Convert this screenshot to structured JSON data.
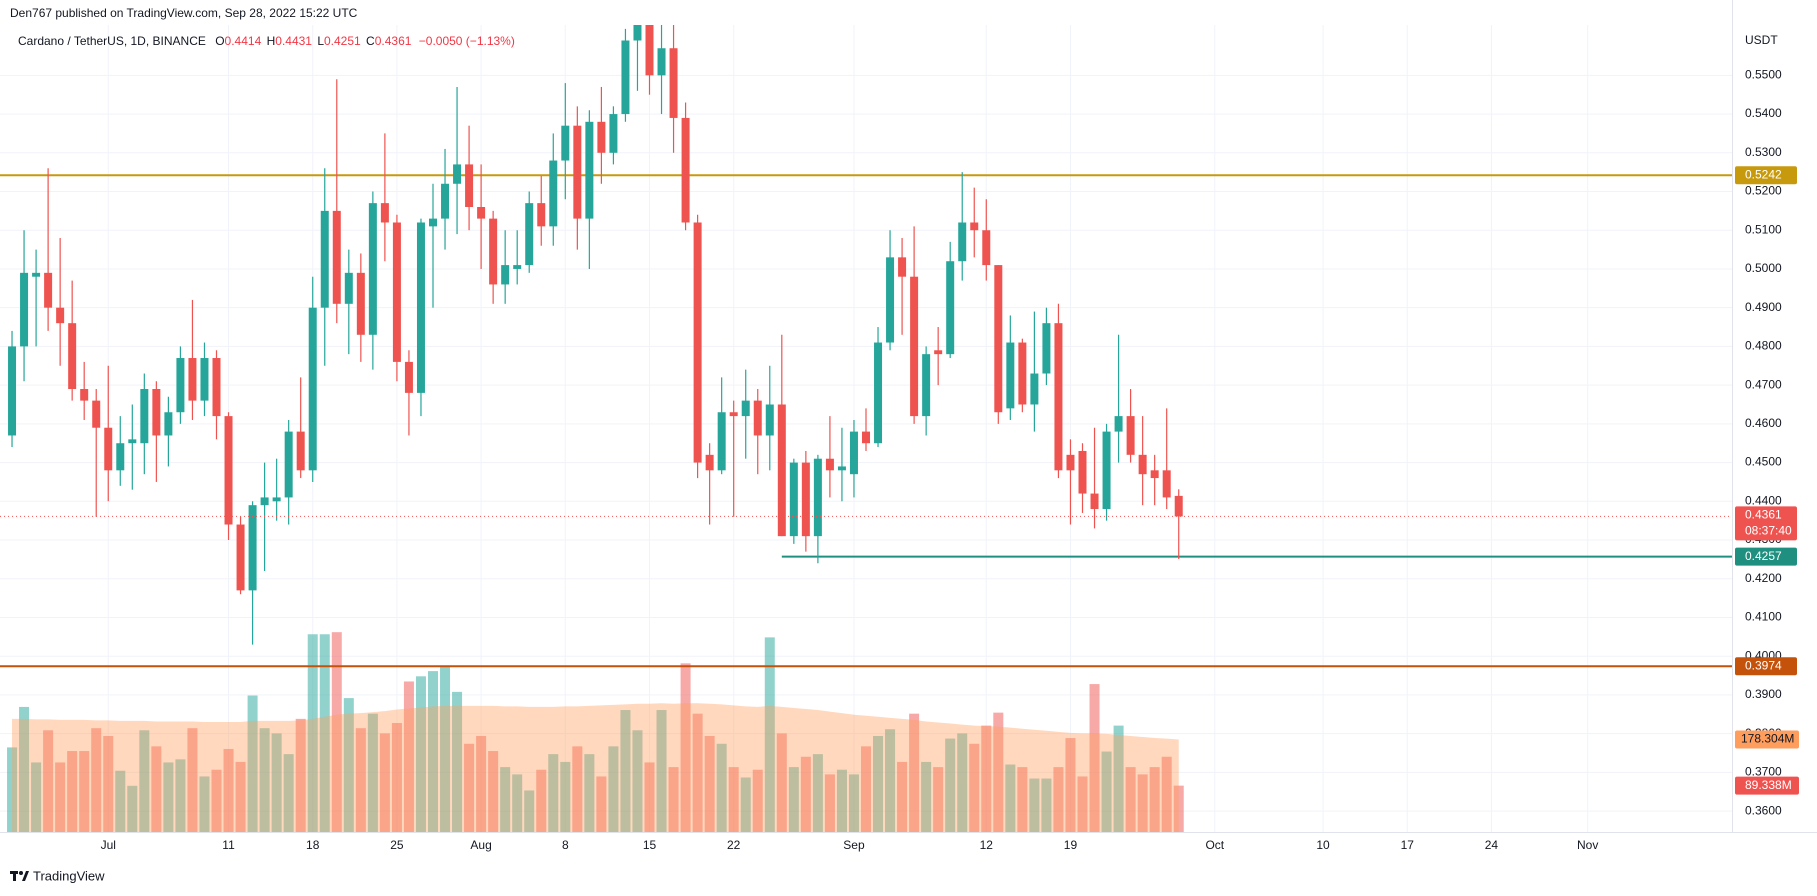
{
  "header": {
    "publisher": "Den767 published on TradingView.com, Sep 28, 2022 15:22 UTC",
    "symbol": "Cardano / TetherUS, 1D, BINANCE",
    "ohlc_labels": [
      "O",
      "H",
      "L",
      "C"
    ],
    "change": "−0.0050 (−1.13%)"
  },
  "footer": {
    "brand": "TradingView"
  },
  "chart_data": {
    "type": "candlestick",
    "y_unit": "USDT",
    "up_color": "#26a69a",
    "down_color": "#ef5350",
    "x": [
      "2022-06-23",
      "2022-06-24",
      "2022-06-25",
      "2022-06-26",
      "2022-06-27",
      "2022-06-28",
      "2022-06-29",
      "2022-06-30",
      "2022-07-01",
      "2022-07-02",
      "2022-07-03",
      "2022-07-04",
      "2022-07-05",
      "2022-07-06",
      "2022-07-07",
      "2022-07-08",
      "2022-07-09",
      "2022-07-10",
      "2022-07-11",
      "2022-07-12",
      "2022-07-13",
      "2022-07-14",
      "2022-07-15",
      "2022-07-16",
      "2022-07-17",
      "2022-07-18",
      "2022-07-19",
      "2022-07-20",
      "2022-07-21",
      "2022-07-22",
      "2022-07-23",
      "2022-07-24",
      "2022-07-25",
      "2022-07-26",
      "2022-07-27",
      "2022-07-28",
      "2022-07-29",
      "2022-07-30",
      "2022-07-31",
      "2022-08-01",
      "2022-08-02",
      "2022-08-03",
      "2022-08-04",
      "2022-08-05",
      "2022-08-06",
      "2022-08-07",
      "2022-08-08",
      "2022-08-09",
      "2022-08-10",
      "2022-08-11",
      "2022-08-12",
      "2022-08-13",
      "2022-08-14",
      "2022-08-15",
      "2022-08-16",
      "2022-08-17",
      "2022-08-18",
      "2022-08-19",
      "2022-08-20",
      "2022-08-21",
      "2022-08-22",
      "2022-08-23",
      "2022-08-24",
      "2022-08-25",
      "2022-08-26",
      "2022-08-27",
      "2022-08-28",
      "2022-08-29",
      "2022-08-30",
      "2022-08-31",
      "2022-09-01",
      "2022-09-02",
      "2022-09-03",
      "2022-09-04",
      "2022-09-05",
      "2022-09-06",
      "2022-09-07",
      "2022-09-08",
      "2022-09-09",
      "2022-09-10",
      "2022-09-11",
      "2022-09-12",
      "2022-09-13",
      "2022-09-14",
      "2022-09-15",
      "2022-09-16",
      "2022-09-17",
      "2022-09-18",
      "2022-09-19",
      "2022-09-20",
      "2022-09-21",
      "2022-09-22",
      "2022-09-23",
      "2022-09-24",
      "2022-09-25",
      "2022-09-26",
      "2022-09-27",
      "2022-09-28"
    ],
    "open": [
      0.457,
      0.48,
      0.498,
      0.499,
      0.49,
      0.486,
      0.469,
      0.466,
      0.459,
      0.448,
      0.455,
      0.455,
      0.469,
      0.457,
      0.463,
      0.477,
      0.466,
      0.477,
      0.462,
      0.434,
      0.417,
      0.439,
      0.44,
      0.441,
      0.458,
      0.448,
      0.49,
      0.515,
      0.491,
      0.499,
      0.483,
      0.517,
      0.512,
      0.476,
      0.468,
      0.511,
      0.513,
      0.522,
      0.527,
      0.516,
      0.513,
      0.496,
      0.5,
      0.501,
      0.517,
      0.511,
      0.528,
      0.537,
      0.513,
      0.538,
      0.53,
      0.54,
      0.559,
      0.563,
      0.55,
      0.557,
      0.539,
      0.512,
      0.452,
      0.448,
      0.463,
      0.462,
      0.466,
      0.457,
      0.465,
      0.431,
      0.45,
      0.431,
      0.451,
      0.448,
      0.447,
      0.458,
      0.455,
      0.481,
      0.503,
      0.498,
      0.462,
      0.479,
      0.478,
      0.502,
      0.512,
      0.51,
      0.501,
      0.464,
      0.481,
      0.465,
      0.473,
      0.486,
      0.452,
      0.453,
      0.442,
      0.438,
      0.458,
      0.462,
      0.452,
      0.448,
      0.448,
      0.4414
    ],
    "high": [
      0.484,
      0.51,
      0.505,
      0.526,
      0.508,
      0.497,
      0.476,
      0.469,
      0.475,
      0.462,
      0.465,
      0.473,
      0.471,
      0.467,
      0.48,
      0.492,
      0.481,
      0.479,
      0.463,
      0.436,
      0.44,
      0.45,
      0.451,
      0.461,
      0.472,
      0.498,
      0.526,
      0.549,
      0.505,
      0.504,
      0.52,
      0.535,
      0.514,
      0.479,
      0.513,
      0.522,
      0.531,
      0.547,
      0.537,
      0.527,
      0.515,
      0.51,
      0.51,
      0.52,
      0.524,
      0.535,
      0.548,
      0.542,
      0.541,
      0.547,
      0.542,
      0.562,
      0.565,
      0.565,
      0.565,
      0.563,
      0.543,
      0.514,
      0.455,
      0.472,
      0.466,
      0.474,
      0.469,
      0.475,
      0.483,
      0.451,
      0.453,
      0.452,
      0.462,
      0.459,
      0.461,
      0.464,
      0.485,
      0.51,
      0.508,
      0.511,
      0.48,
      0.485,
      0.507,
      0.525,
      0.521,
      0.518,
      0.501,
      0.488,
      0.482,
      0.489,
      0.49,
      0.491,
      0.456,
      0.455,
      0.459,
      0.46,
      0.483,
      0.469,
      0.462,
      0.452,
      0.464,
      0.4431
    ],
    "low": [
      0.454,
      0.471,
      0.48,
      0.484,
      0.475,
      0.466,
      0.461,
      0.436,
      0.44,
      0.444,
      0.443,
      0.447,
      0.445,
      0.449,
      0.46,
      0.461,
      0.462,
      0.456,
      0.43,
      0.416,
      0.403,
      0.422,
      0.435,
      0.434,
      0.446,
      0.445,
      0.475,
      0.486,
      0.478,
      0.476,
      0.474,
      0.502,
      0.471,
      0.457,
      0.462,
      0.49,
      0.505,
      0.509,
      0.51,
      0.5,
      0.491,
      0.491,
      0.496,
      0.499,
      0.506,
      0.506,
      0.518,
      0.505,
      0.5,
      0.522,
      0.527,
      0.538,
      0.546,
      0.545,
      0.54,
      0.53,
      0.51,
      0.446,
      0.434,
      0.447,
      0.436,
      0.451,
      0.447,
      0.448,
      0.431,
      0.429,
      0.427,
      0.424,
      0.441,
      0.44,
      0.441,
      0.453,
      0.454,
      0.479,
      0.483,
      0.46,
      0.457,
      0.47,
      0.477,
      0.497,
      0.503,
      0.497,
      0.46,
      0.461,
      0.463,
      0.458,
      0.47,
      0.446,
      0.434,
      0.437,
      0.433,
      0.435,
      0.45,
      0.45,
      0.439,
      0.439,
      0.438,
      0.4251
    ],
    "close": [
      0.48,
      0.499,
      0.499,
      0.49,
      0.486,
      0.469,
      0.466,
      0.459,
      0.448,
      0.455,
      0.456,
      0.469,
      0.457,
      0.463,
      0.477,
      0.466,
      0.477,
      0.462,
      0.434,
      0.417,
      0.439,
      0.441,
      0.441,
      0.458,
      0.448,
      0.49,
      0.515,
      0.491,
      0.499,
      0.483,
      0.517,
      0.512,
      0.476,
      0.468,
      0.512,
      0.513,
      0.522,
      0.527,
      0.516,
      0.513,
      0.496,
      0.501,
      0.501,
      0.517,
      0.511,
      0.528,
      0.537,
      0.513,
      0.538,
      0.53,
      0.54,
      0.559,
      0.563,
      0.55,
      0.557,
      0.539,
      0.512,
      0.45,
      0.448,
      0.463,
      0.462,
      0.466,
      0.457,
      0.465,
      0.431,
      0.45,
      0.431,
      0.451,
      0.448,
      0.449,
      0.458,
      0.455,
      0.481,
      0.503,
      0.498,
      0.462,
      0.478,
      0.478,
      0.502,
      0.512,
      0.51,
      0.501,
      0.463,
      0.481,
      0.465,
      0.473,
      0.486,
      0.448,
      0.448,
      0.442,
      0.438,
      0.458,
      0.462,
      0.452,
      0.447,
      0.446,
      0.441,
      0.4361
    ],
    "volume": {
      "values": [
        163,
        241,
        134,
        196,
        134,
        156,
        156,
        200,
        185,
        118,
        89,
        196,
        165,
        134,
        140,
        200,
        107,
        120,
        160,
        135,
        263,
        200,
        190,
        150,
        218,
        381,
        381,
        385,
        258,
        200,
        228,
        190,
        210,
        290,
        300,
        310,
        320,
        270,
        170,
        185,
        156,
        125,
        111,
        80,
        120,
        150,
        135,
        165,
        150,
        107,
        165,
        235,
        196,
        134,
        235,
        125,
        325,
        228,
        185,
        170,
        125,
        105,
        120,
        375,
        190,
        125,
        145,
        150,
        111,
        120,
        111,
        165,
        185,
        198,
        135,
        228,
        135,
        125,
        180,
        190,
        170,
        205,
        230,
        130,
        125,
        103,
        103,
        125,
        181,
        107,
        285,
        155,
        205,
        125,
        111,
        125,
        145,
        89.338
      ],
      "value_labels": {
        "97": "89.338M"
      }
    },
    "volume_ma": {
      "color": "#ff9d5c",
      "values": [
        218,
        218,
        217,
        217,
        216,
        216,
        216,
        215,
        215,
        214,
        214,
        214,
        213,
        213,
        213,
        213,
        212,
        212,
        212,
        212,
        214,
        214,
        214,
        214,
        215,
        218,
        222,
        226,
        228,
        229,
        231,
        233,
        236,
        238,
        240,
        242,
        243,
        243,
        243,
        243,
        243,
        242,
        242,
        241,
        241,
        241,
        242,
        242,
        243,
        244,
        245,
        246,
        247,
        247,
        248,
        247,
        248,
        248,
        247,
        246,
        244,
        242,
        241,
        243,
        241,
        239,
        237,
        235,
        232,
        229,
        226,
        224,
        222,
        220,
        218,
        216,
        213,
        211,
        209,
        207,
        205,
        204,
        203,
        201,
        199,
        197,
        195,
        193,
        191,
        190,
        190,
        189,
        187,
        185,
        183,
        181,
        180,
        178.304
      ],
      "value_labels": {
        "97": "178.304M"
      }
    },
    "countdown": "08:37:40",
    "levels": [
      {
        "value": 0.5242,
        "color": "#c79a0e"
      },
      {
        "value": 0.4257,
        "color": "#1f8f7f",
        "start": "2022-08-26"
      },
      {
        "value": 0.3974,
        "color": "#c4520a"
      }
    ],
    "xlim": [
      "2022-06-22",
      "2022-11-13"
    ],
    "xticks": [
      {
        "value": "2022-07-01",
        "label": "Jul"
      },
      {
        "value": "2022-07-11",
        "label": "11"
      },
      {
        "value": "2022-07-18",
        "label": "18"
      },
      {
        "value": "2022-07-25",
        "label": "25"
      },
      {
        "value": "2022-08-01",
        "label": "Aug"
      },
      {
        "value": "2022-08-08",
        "label": "8"
      },
      {
        "value": "2022-08-15",
        "label": "15"
      },
      {
        "value": "2022-08-22",
        "label": "22"
      },
      {
        "value": "2022-09-01",
        "label": "Sep"
      },
      {
        "value": "2022-09-12",
        "label": "12"
      },
      {
        "value": "2022-09-19",
        "label": "19"
      },
      {
        "value": "2022-10-01",
        "label": "Oct"
      },
      {
        "value": "2022-10-10",
        "label": "10"
      },
      {
        "value": "2022-10-17",
        "label": "17"
      },
      {
        "value": "2022-10-24",
        "label": "24"
      },
      {
        "value": "2022-11-01",
        "label": "Nov"
      }
    ],
    "ylim": [
      0.3546,
      0.563
    ],
    "yticks": [
      {
        "value": 0.36,
        "label": "0.3600"
      },
      {
        "value": 0.37,
        "label": "0.3700"
      },
      {
        "value": 0.38,
        "label": "0.3800"
      },
      {
        "value": 0.39,
        "label": "0.3900"
      },
      {
        "value": 0.4,
        "label": "0.4000"
      },
      {
        "value": 0.41,
        "label": "0.4100"
      },
      {
        "value": 0.42,
        "label": "0.4200"
      },
      {
        "value": 0.43,
        "label": "0.4300"
      },
      {
        "value": 0.44,
        "label": "0.4400"
      },
      {
        "value": 0.45,
        "label": "0.4500"
      },
      {
        "value": 0.46,
        "label": "0.4600"
      },
      {
        "value": 0.47,
        "label": "0.4700"
      },
      {
        "value": 0.48,
        "label": "0.4800"
      },
      {
        "value": 0.49,
        "label": "0.4900"
      },
      {
        "value": 0.5,
        "label": "0.5000"
      },
      {
        "value": 0.51,
        "label": "0.5100"
      },
      {
        "value": 0.52,
        "label": "0.5200"
      },
      {
        "value": 0.53,
        "label": "0.5300"
      },
      {
        "value": 0.54,
        "label": "0.5400"
      },
      {
        "value": 0.55,
        "label": "0.5500"
      }
    ],
    "grid": true
  }
}
